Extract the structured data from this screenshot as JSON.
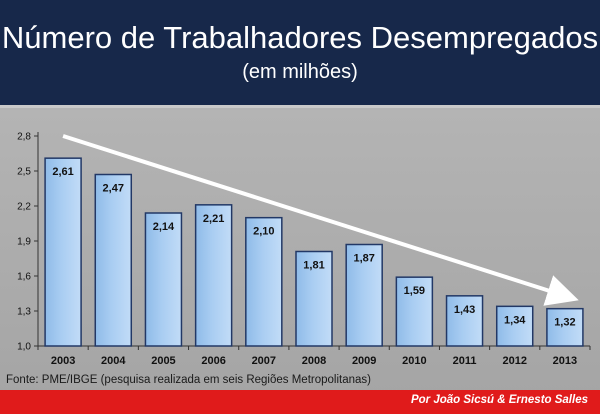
{
  "header": {
    "title": "Número de Trabalhadores Desempregados",
    "subtitle": "(em milhões)"
  },
  "colors": {
    "header_bg": "#17284a",
    "plot_bg": "#a9a9a9",
    "bar_fill": "#a9cdf2",
    "bar_edge": "#223866",
    "footer_bg": "#e01b1b",
    "arrow": "#ffffff"
  },
  "chart_data": {
    "type": "bar",
    "categories": [
      "2003",
      "2004",
      "2005",
      "2006",
      "2007",
      "2008",
      "2009",
      "2010",
      "2011",
      "2012",
      "2013"
    ],
    "values": [
      2.61,
      2.47,
      2.14,
      2.21,
      2.1,
      1.81,
      1.87,
      1.59,
      1.43,
      1.34,
      1.32
    ],
    "value_labels": [
      "2,61",
      "2,47",
      "2,14",
      "2,21",
      "2,10",
      "1,81",
      "1,87",
      "1,59",
      "1,43",
      "1,34",
      "1,32"
    ],
    "y_ticks": [
      "1,0",
      "1,3",
      "1,6",
      "1,9",
      "2,2",
      "2,5",
      "2,8"
    ],
    "y_tick_values": [
      1.0,
      1.3,
      1.6,
      1.9,
      2.2,
      2.5,
      2.8
    ],
    "ylim": [
      1.0,
      2.8
    ],
    "grid": false,
    "trend_arrow": {
      "from_category": "2003",
      "from_value": 2.8,
      "to_category": "2013",
      "to_value": 1.3
    }
  },
  "source": "Fonte: PME/IBGE  (pesquisa realizada em seis Regiões Metropolitanas)",
  "credit": "Por João Sicsú  &  Ernesto Salles"
}
